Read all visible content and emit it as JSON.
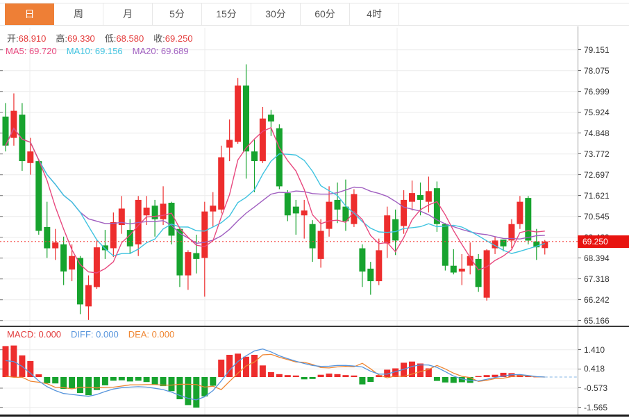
{
  "toolbar": {
    "tabs": [
      {
        "id": "tab-day",
        "label": "日",
        "active": true
      },
      {
        "id": "tab-week",
        "label": "周",
        "active": false
      },
      {
        "id": "tab-month",
        "label": "月",
        "active": false
      },
      {
        "id": "tab-5min",
        "label": "5分",
        "active": false
      },
      {
        "id": "tab-15min",
        "label": "15分",
        "active": false
      },
      {
        "id": "tab-30min",
        "label": "30分",
        "active": false
      },
      {
        "id": "tab-60min",
        "label": "60分",
        "active": false
      },
      {
        "id": "tab-4hour",
        "label": "4时",
        "active": false
      }
    ]
  },
  "main_chart": {
    "ohlc_legend": [
      {
        "label": "开:",
        "value": "68.910"
      },
      {
        "label": "高:",
        "value": "69.330"
      },
      {
        "label": "低:",
        "value": "68.580"
      },
      {
        "label": "收:",
        "value": "69.250"
      }
    ],
    "ma_legend": [
      {
        "label": "MA5:",
        "value": "69.720",
        "color": "#e8487e"
      },
      {
        "label": "MA10:",
        "value": "69.156",
        "color": "#3fc3e0"
      },
      {
        "label": "MA20:",
        "value": "69.689",
        "color": "#a05fc0"
      }
    ],
    "y_axis_labels": [
      "79.151",
      "78.075",
      "76.999",
      "75.924",
      "74.848",
      "73.772",
      "72.697",
      "71.621",
      "70.545",
      "69.469",
      "68.394",
      "67.318",
      "66.242",
      "65.166"
    ],
    "last_price_badge": "69.250"
  },
  "macd_panel": {
    "legend": [
      {
        "label": "MACD:",
        "value": "0.000",
        "color": "#e23d3d"
      },
      {
        "label": "DIFF:",
        "value": "0.000",
        "color": "#5795dc"
      },
      {
        "label": "DEA:",
        "value": "0.000",
        "color": "#ef8632"
      }
    ],
    "y_axis_labels": [
      "1.410",
      "0.418",
      "-0.573",
      "-1.565"
    ]
  },
  "chart_data": {
    "type": "candlestick+macd",
    "timeframe_selected": "日",
    "price_axis": {
      "ticks": [
        79.151,
        78.075,
        76.999,
        75.924,
        74.848,
        73.772,
        72.697,
        71.621,
        70.545,
        69.469,
        68.394,
        67.318,
        66.242,
        65.166
      ]
    },
    "macd_axis": {
      "ticks": [
        1.41,
        0.418,
        -0.573,
        -1.565
      ]
    },
    "last_price": 69.25,
    "ohlc_current": {
      "open": 68.91,
      "high": 69.33,
      "low": 68.58,
      "close": 69.25
    },
    "ma_values": {
      "ma5": 69.72,
      "ma10": 69.156,
      "ma20": 69.689
    },
    "macd_values": {
      "macd": 0.0,
      "diff": 0.0,
      "dea": 0.0
    },
    "ma_periods": [
      5,
      10,
      20
    ],
    "vertical_gridlines_x": [
      43,
      295,
      572
    ],
    "candles_ohlc": [
      [
        75.7,
        76.4,
        73.9,
        74.2
      ],
      [
        74.6,
        76.9,
        74.2,
        76.0
      ],
      [
        75.8,
        76.4,
        72.9,
        73.4
      ],
      [
        73.3,
        74.6,
        72.7,
        73.9
      ],
      [
        73.4,
        73.5,
        69.6,
        69.8
      ],
      [
        70.0,
        71.3,
        68.4,
        68.9
      ],
      [
        68.9,
        69.9,
        68.3,
        69.2
      ],
      [
        69.1,
        69.5,
        67.0,
        67.7
      ],
      [
        67.8,
        69.1,
        67.2,
        68.5
      ],
      [
        68.4,
        68.5,
        65.5,
        66.0
      ],
      [
        65.9,
        67.5,
        65.2,
        67.0
      ],
      [
        66.9,
        69.3,
        66.8,
        68.95
      ],
      [
        69.05,
        69.85,
        68.35,
        68.8
      ],
      [
        68.9,
        70.75,
        68.45,
        70.25
      ],
      [
        70.1,
        71.6,
        69.65,
        70.95
      ],
      [
        69.85,
        70.4,
        68.6,
        69.0
      ],
      [
        69.1,
        71.6,
        68.5,
        71.4
      ],
      [
        70.6,
        71.6,
        70.1,
        71.0
      ],
      [
        71.1,
        71.4,
        69.5,
        70.4
      ],
      [
        70.4,
        72.1,
        70.1,
        71.2
      ],
      [
        71.25,
        71.3,
        69.1,
        69.55
      ],
      [
        69.9,
        70.0,
        66.9,
        67.5
      ],
      [
        67.5,
        68.8,
        66.75,
        68.7
      ],
      [
        68.65,
        69.6,
        67.6,
        68.35
      ],
      [
        68.4,
        71.3,
        66.4,
        70.8
      ],
      [
        70.8,
        71.8,
        70.0,
        71.1
      ],
      [
        70.9,
        74.2,
        70.7,
        73.6
      ],
      [
        74.1,
        75.55,
        73.4,
        74.5
      ],
      [
        74.4,
        77.7,
        74.3,
        77.3
      ],
      [
        77.3,
        78.4,
        72.5,
        73.9
      ],
      [
        73.9,
        74.5,
        71.8,
        73.4
      ],
      [
        73.4,
        76.2,
        73.3,
        75.6
      ],
      [
        75.8,
        76.05,
        74.7,
        75.45
      ],
      [
        75.1,
        75.3,
        71.95,
        72.1
      ],
      [
        71.75,
        71.9,
        70.3,
        70.6
      ],
      [
        71.05,
        71.4,
        69.6,
        70.7
      ],
      [
        70.6,
        71.4,
        69.4,
        70.85
      ],
      [
        70.15,
        70.35,
        68.2,
        68.9
      ],
      [
        68.35,
        70.4,
        67.9,
        69.8
      ],
      [
        69.9,
        72.1,
        69.5,
        71.3
      ],
      [
        71.4,
        72.3,
        70.2,
        70.9
      ],
      [
        71.05,
        72.45,
        69.8,
        70.3
      ],
      [
        70.15,
        71.95,
        70.0,
        71.7
      ],
      [
        68.9,
        69.1,
        66.9,
        67.7
      ],
      [
        67.85,
        68.2,
        66.5,
        67.2
      ],
      [
        67.2,
        69.4,
        67.0,
        68.8
      ],
      [
        69.15,
        71.05,
        68.4,
        70.6
      ],
      [
        70.4,
        70.9,
        68.55,
        69.3
      ],
      [
        70.05,
        71.9,
        69.65,
        71.4
      ],
      [
        71.3,
        72.4,
        70.85,
        71.75
      ],
      [
        71.65,
        72.3,
        70.6,
        71.4
      ],
      [
        71.3,
        72.6,
        70.75,
        71.85
      ],
      [
        72.0,
        72.35,
        69.75,
        70.15
      ],
      [
        70.15,
        70.2,
        67.75,
        68.0
      ],
      [
        68.0,
        68.85,
        67.55,
        67.65
      ],
      [
        67.7,
        68.6,
        67.0,
        67.85
      ],
      [
        68.0,
        69.2,
        67.55,
        68.5
      ],
      [
        68.35,
        68.6,
        66.65,
        66.9
      ],
      [
        66.35,
        68.85,
        66.2,
        68.8
      ],
      [
        68.9,
        69.5,
        68.6,
        69.3
      ],
      [
        69.35,
        69.35,
        68.75,
        69.0
      ],
      [
        69.3,
        70.4,
        68.9,
        70.15
      ],
      [
        70.15,
        71.6,
        69.9,
        71.3
      ],
      [
        71.5,
        71.6,
        69.1,
        69.3
      ],
      [
        69.25,
        69.9,
        68.3,
        68.95
      ],
      [
        68.91,
        69.33,
        68.58,
        69.25
      ]
    ],
    "macd_hist": [
      1.6,
      1.63,
      1.12,
      0.83,
      0.14,
      -0.32,
      -0.33,
      -0.61,
      -0.58,
      -0.83,
      -0.94,
      -0.67,
      -0.43,
      -0.19,
      -0.17,
      -0.23,
      -0.19,
      -0.26,
      -0.38,
      -0.47,
      -0.73,
      -1.15,
      -1.45,
      -1.58,
      -1.0,
      -0.45,
      0.9,
      1.15,
      1.21,
      1.05,
      1.15,
      0.6,
      0.25,
      0.15,
      0.1,
      0.08,
      -0.12,
      -0.1,
      0.12,
      0.18,
      0.15,
      0.1,
      0.08,
      -0.38,
      -0.25,
      0.1,
      0.38,
      0.45,
      0.74,
      0.8,
      0.7,
      0.45,
      -0.2,
      -0.28,
      -0.3,
      -0.27,
      -0.3,
      0.05,
      0.1,
      0.12,
      0.22,
      0.2,
      0.12,
      0.05,
      0.02,
      0.0
    ],
    "macd_diff": [
      0.85,
      0.8,
      0.55,
      0.2,
      -0.2,
      -0.5,
      -0.7,
      -0.85,
      -0.9,
      -0.95,
      -1.0,
      -0.9,
      -0.75,
      -0.62,
      -0.55,
      -0.52,
      -0.5,
      -0.52,
      -0.58,
      -0.65,
      -0.78,
      -0.95,
      -1.1,
      -1.18,
      -1.02,
      -0.7,
      -0.2,
      0.35,
      0.8,
      1.1,
      1.35,
      1.45,
      1.3,
      1.1,
      0.95,
      0.82,
      0.7,
      0.6,
      0.55,
      0.56,
      0.6,
      0.6,
      0.57,
      0.52,
      0.3,
      0.15,
      0.15,
      0.28,
      0.4,
      0.55,
      0.63,
      0.62,
      0.5,
      0.28,
      0.05,
      -0.1,
      -0.18,
      -0.2,
      -0.12,
      -0.02,
      0.05,
      0.12,
      0.13,
      0.08,
      0.02,
      0.0
    ]
  },
  "colors": {
    "up": "#ed2d2d",
    "down": "#17a32e",
    "ma5": "#e8487e",
    "ma10": "#3fc3e0",
    "ma20": "#a05fc0",
    "diff": "#5795dc",
    "dea": "#ef8632",
    "tab_active_bg": "#ee7f36",
    "badge_bg": "#e81410",
    "grid": "#ececec",
    "dotted_line": "#f5413d",
    "ohlc_value": "#e43b3b",
    "zero_dash": "#9cc3ea"
  }
}
